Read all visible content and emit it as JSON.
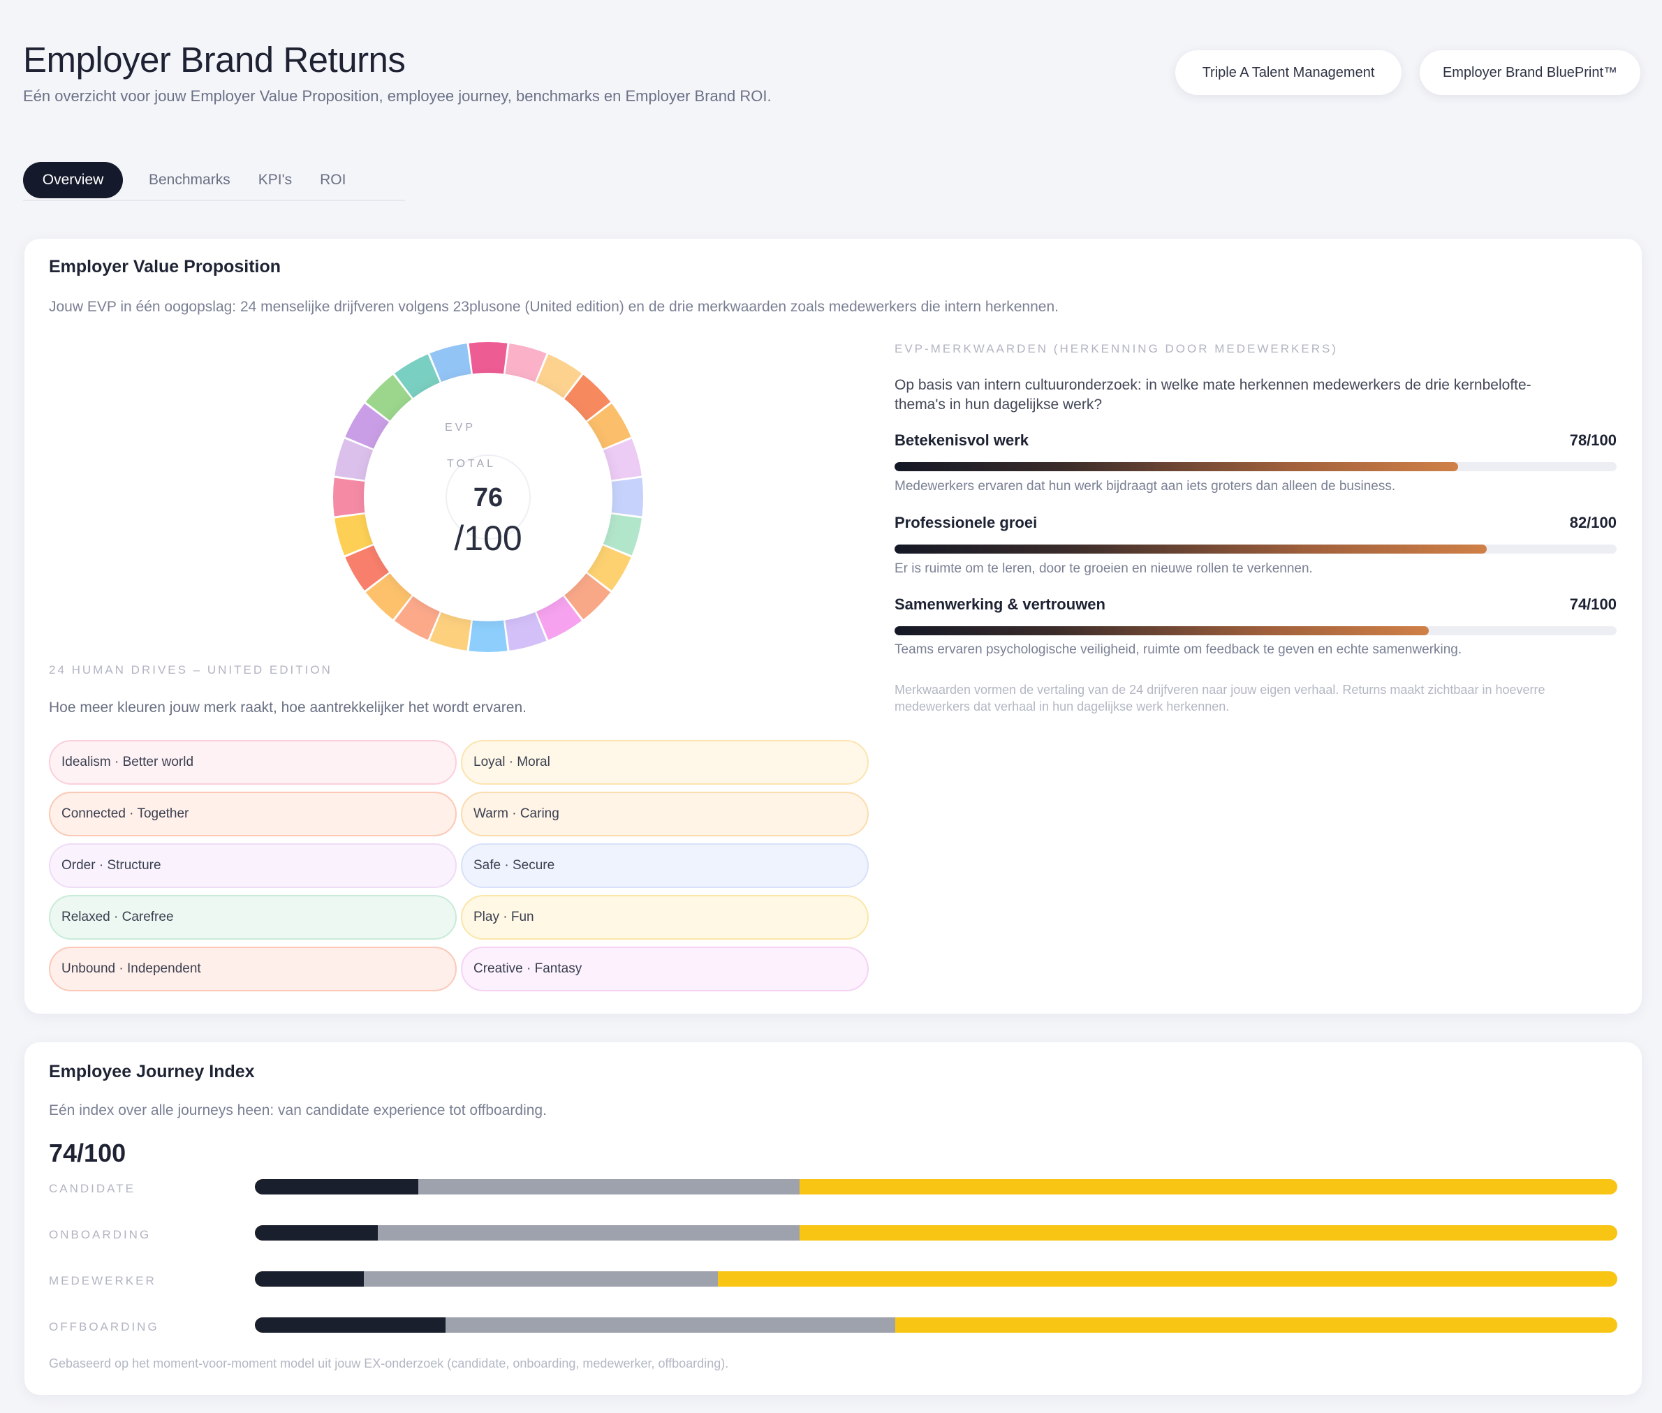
{
  "header": {
    "title": "Employer Brand Returns",
    "subtitle": "Eén overzicht voor jouw Employer Value Proposition, employee journey, benchmarks en Employer Brand ROI.",
    "buttons": [
      "Triple A Talent Management",
      "Employer Brand BluePrint™"
    ]
  },
  "tabs": [
    {
      "label": "Overview",
      "active": true
    },
    {
      "label": "Benchmarks",
      "active": false
    },
    {
      "label": "KPI's",
      "active": false
    },
    {
      "label": "ROI",
      "active": false
    }
  ],
  "evp": {
    "title": "Employer Value Proposition",
    "description": "Jouw EVP in één oogopslag: 24 menselijke drijfveren volgens 23plusone (United edition) en de drie merkwaarden zoals medewerkers die intern herkennen.",
    "donut": {
      "label_line1": "EVP",
      "label_line2": "TOTAL",
      "score": "76",
      "score_suffix": "/100",
      "segment_colors": [
        "#ee5c94",
        "#fbb2c8",
        "#fdd28f",
        "#f7895f",
        "#fbbe6a",
        "#eccbf4",
        "#c6d2fb",
        "#b2e6cb",
        "#fdd170",
        "#f9a887",
        "#f6a2ee",
        "#d3c0f9",
        "#8dcefc",
        "#fdd07e",
        "#fca98a",
        "#fdc16b",
        "#f87f6b",
        "#fdd055",
        "#f58aa5",
        "#dcc0ec",
        "#ca9ee6",
        "#9bd68c",
        "#79cfc1",
        "#93c4f6"
      ]
    },
    "drives_caption": "24 HUMAN DRIVES – UNITED EDITION",
    "drives_text": "Hoe meer kleuren jouw merk raakt, hoe aantrekkelijker het wordt ervaren.",
    "drives": [
      {
        "label": "Idealism · Better world",
        "bg": "#fff2f5",
        "border": "#fbcfdc"
      },
      {
        "label": "Loyal · Moral",
        "bg": "#fff8e8",
        "border": "#fbe4b0"
      },
      {
        "label": "Connected · Together",
        "bg": "#fff0ea",
        "border": "#fbc9b5"
      },
      {
        "label": "Warm · Caring",
        "bg": "#fff4e6",
        "border": "#fbdcae"
      },
      {
        "label": "Order · Structure",
        "bg": "#faf3fd",
        "border": "#efdcf6"
      },
      {
        "label": "Safe · Secure",
        "bg": "#eff3fd",
        "border": "#d8e1f9"
      },
      {
        "label": "Relaxed · Carefree",
        "bg": "#edf8f2",
        "border": "#c8ebd7"
      },
      {
        "label": "Play · Fun",
        "bg": "#fff8e5",
        "border": "#fbe6a8"
      },
      {
        "label": "Unbound · Independent",
        "bg": "#ffefea",
        "border": "#fbc8b8"
      },
      {
        "label": "Creative · Fantasy",
        "bg": "#fcf1fd",
        "border": "#f5d2f5"
      }
    ],
    "values_caption": "EVP-MERKWAARDEN (HERKENNING DOOR MEDEWERKERS)",
    "values_question": "Op basis van intern cultuuronderzoek: in welke mate herkennen medewerkers de drie kernbelofte- thema's in hun dagelijkse werk?",
    "values": [
      {
        "name": "Betekenisvol werk",
        "score_text": "78/100",
        "score": 78,
        "description": "Medewerkers ervaren dat hun werk bijdraagt aan iets groters dan alleen de business."
      },
      {
        "name": "Professionele groei",
        "score_text": "82/100",
        "score": 82,
        "description": "Er is ruimte om te leren, door te groeien en nieuwe rollen te verkennen."
      },
      {
        "name": "Samenwerking & vertrouwen",
        "score_text": "74/100",
        "score": 74,
        "description": "Teams ervaren psychologische veiligheid, ruimte om feedback te geven en echte samenwerking."
      }
    ],
    "values_note": "Merkwaarden vormen de vertaling van de 24 drijfveren naar jouw eigen verhaal. Returns maakt zichtbaar in hoeverre medewerkers dat verhaal in hun dagelijkse werk herkennen."
  },
  "journey": {
    "title": "Employee Journey Index",
    "description": "Eén index over alle journeys heen: van candidate experience tot offboarding.",
    "score": "74/100",
    "rows": [
      {
        "label": "CANDIDATE",
        "dark": 12,
        "grey": 28
      },
      {
        "label": "ONBOARDING",
        "dark": 9,
        "grey": 31
      },
      {
        "label": "MEDEWERKER",
        "dark": 8,
        "grey": 26
      },
      {
        "label": "OFFBOARDING",
        "dark": 14,
        "grey": 33
      }
    ],
    "colors": {
      "dark": "#1a1f2e",
      "grey": "#9ea2ad",
      "yellow": "#f8c515"
    },
    "note": "Gebaseerd op het moment-voor-moment model uit jouw EX-onderzoek (candidate, onboarding, medewerker, offboarding)."
  }
}
